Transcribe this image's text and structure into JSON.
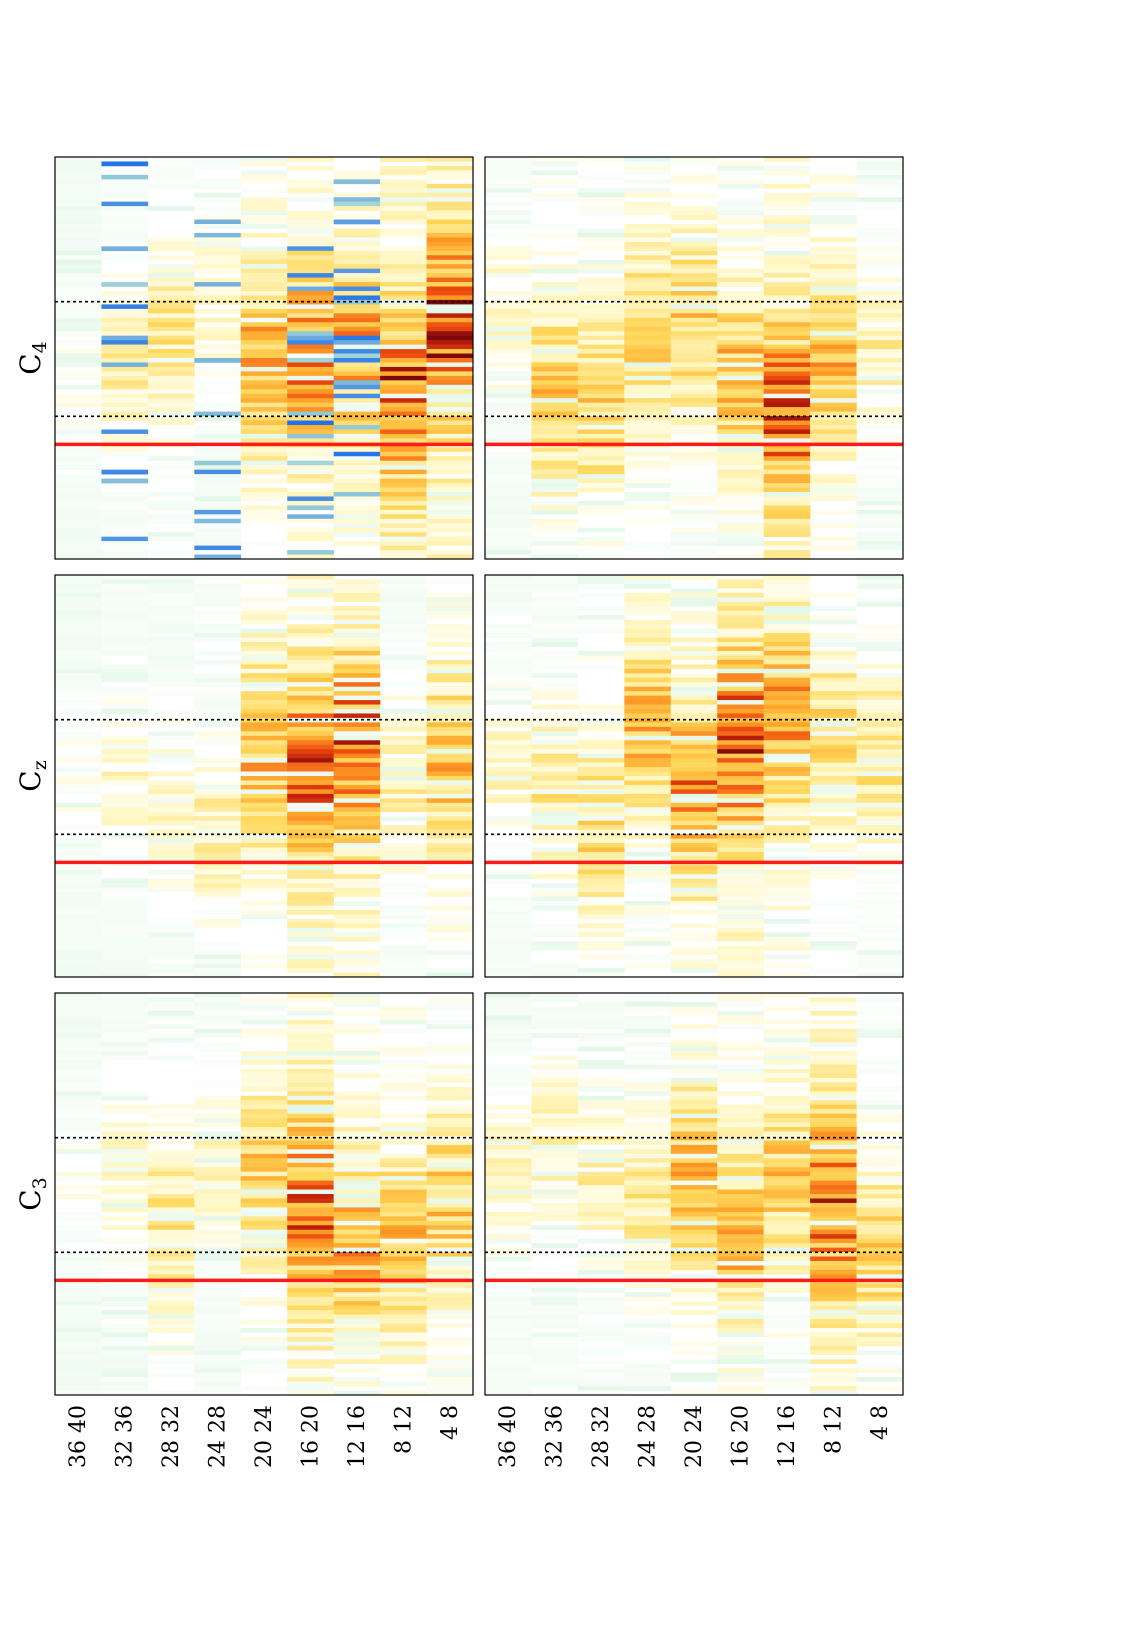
{
  "figure": {
    "rotation": "landscape figure rotated -90 degrees",
    "row_labels": [
      "36 40",
      "32 36",
      "28 32",
      "24 28",
      "20 24",
      "16 20",
      "12 16",
      "8 12",
      "4 8"
    ],
    "panel_titles": [
      {
        "main": "C",
        "sub": "3"
      },
      {
        "main": "C",
        "sub": "z"
      },
      {
        "main": "C",
        "sub": "4"
      }
    ]
  },
  "chart_data": [
    {
      "type": "heatmap",
      "panel": "C3-top",
      "title": "C3",
      "rows": [
        "36 40",
        "32 36",
        "28 32",
        "24 28",
        "20 24",
        "16 20",
        "12 16",
        "8 12",
        "4 8"
      ],
      "row_peaks": [
        0.2,
        0.3,
        0.45,
        0.3,
        0.55,
        0.85,
        0.65,
        0.6,
        0.55
      ],
      "colormap": [
        "#3a7fd6",
        "#b8ecc9",
        "#ffffff",
        "#ffef9a",
        "#ffc43a",
        "#ff7a1a",
        "#d6300a",
        "#8b0a0a"
      ],
      "stimulus_line": 0.285,
      "window_lines": [
        0.355,
        0.64
      ]
    },
    {
      "type": "heatmap",
      "panel": "C3-bottom",
      "title": "",
      "rows": [
        "36 40",
        "32 36",
        "28 32",
        "24 28",
        "20 24",
        "16 20",
        "12 16",
        "8 12",
        "4 8"
      ],
      "row_peaks": [
        0.3,
        0.35,
        0.35,
        0.4,
        0.6,
        0.6,
        0.55,
        0.85,
        0.5
      ],
      "stimulus_line": 0.285,
      "window_lines": [
        0.355,
        0.64
      ]
    },
    {
      "type": "heatmap",
      "panel": "Cz-top",
      "title": "Cz",
      "rows": [
        "36 40",
        "32 36",
        "28 32",
        "24 28",
        "20 24",
        "16 20",
        "12 16",
        "8 12",
        "4 8"
      ],
      "row_peaks": [
        0.2,
        0.3,
        0.3,
        0.35,
        0.65,
        0.85,
        0.85,
        0.35,
        0.6
      ],
      "stimulus_line": 0.285,
      "window_lines": [
        0.355,
        0.64
      ]
    },
    {
      "type": "heatmap",
      "panel": "Cz-bottom",
      "title": "",
      "rows": [
        "36 40",
        "32 36",
        "28 32",
        "24 28",
        "20 24",
        "16 20",
        "12 16",
        "8 12",
        "4 8"
      ],
      "row_peaks": [
        0.3,
        0.4,
        0.5,
        0.6,
        0.75,
        0.9,
        0.7,
        0.5,
        0.45
      ],
      "stimulus_line": 0.285,
      "window_lines": [
        0.355,
        0.64
      ]
    },
    {
      "type": "heatmap",
      "panel": "C4-top",
      "title": "C4",
      "rows": [
        "36 40",
        "32 36",
        "28 32",
        "24 28",
        "20 24",
        "16 20",
        "12 16",
        "8 12",
        "4 8"
      ],
      "row_peaks": [
        0.2,
        0.35,
        0.4,
        0.3,
        0.65,
        0.75,
        0.7,
        0.9,
        0.95
      ],
      "negative_rows": [
        1,
        3,
        5,
        6
      ],
      "stimulus_line": 0.285,
      "window_lines": [
        0.355,
        0.64
      ]
    },
    {
      "type": "heatmap",
      "panel": "C4-bottom",
      "title": "",
      "rows": [
        "36 40",
        "32 36",
        "28 32",
        "24 28",
        "20 24",
        "16 20",
        "12 16",
        "8 12",
        "4 8"
      ],
      "row_peaks": [
        0.3,
        0.55,
        0.55,
        0.55,
        0.55,
        0.6,
        0.85,
        0.6,
        0.35
      ],
      "stimulus_line": 0.285,
      "window_lines": [
        0.355,
        0.64
      ]
    }
  ]
}
